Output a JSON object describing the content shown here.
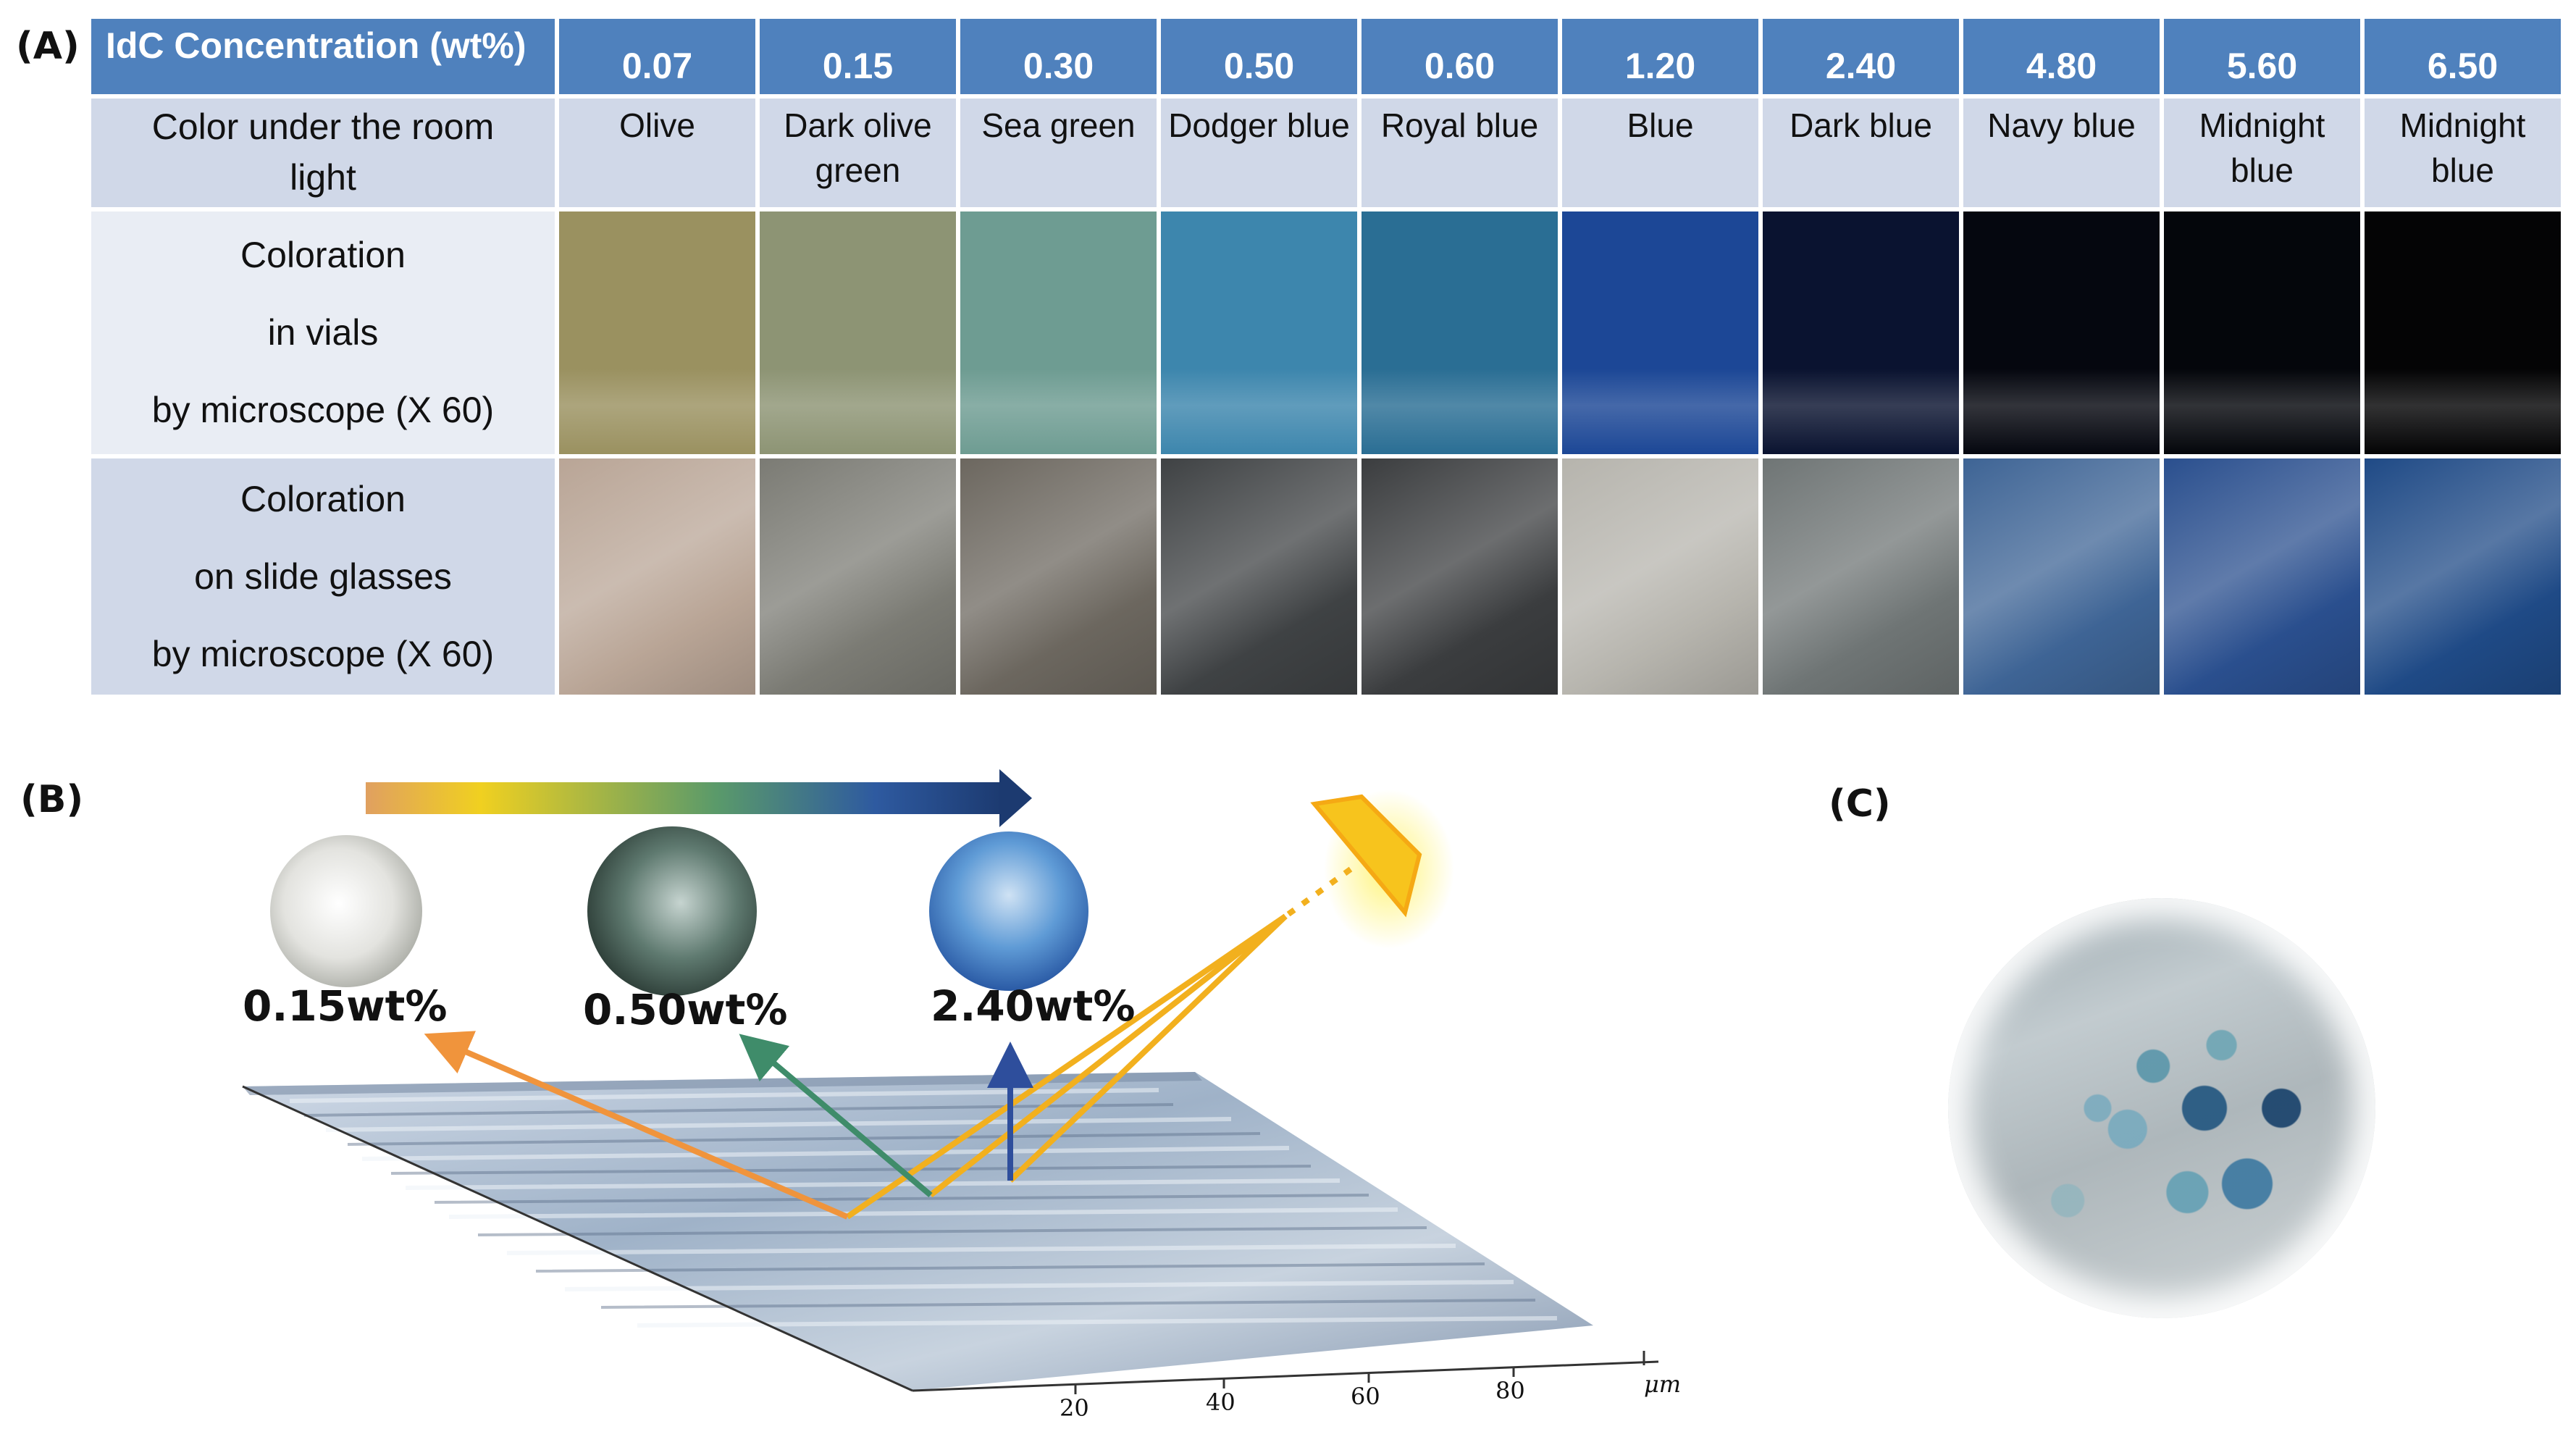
{
  "panel_labels": {
    "a": "(A)",
    "b": "(B)",
    "c": "(C)"
  },
  "table": {
    "header_label": "IdC Concentration (wt%)",
    "concentrations": [
      "0.07",
      "0.15",
      "0.30",
      "0.50",
      "0.60",
      "1.20",
      "2.40",
      "4.80",
      "5.60",
      "6.50"
    ],
    "color_row_label": "Color under the room light",
    "color_names": [
      "Olive",
      "Dark olive green",
      "Sea green",
      "Dodger blue",
      "Royal blue",
      "Blue",
      "Dark blue",
      "Navy blue",
      "Midnight blue",
      "Midnight blue"
    ],
    "vials_row_label": [
      "Coloration",
      "in vials",
      "by microscope (X 60)"
    ],
    "slides_row_label": [
      "Coloration",
      "on slide glasses",
      "by microscope (X 60)"
    ],
    "vial_colors": [
      "#9a9160",
      "#8d9474",
      "#6e9c92",
      "#3d86ad",
      "#2a6e94",
      "#1c4796",
      "#0a1330",
      "#05070f",
      "#04060b",
      "#040405"
    ],
    "slide_colors": [
      "#b9a596",
      "#7b7b74",
      "#6c675f",
      "#3f4244",
      "#3b3d3f",
      "#b6b4ad",
      "#6f7575",
      "#3e6495",
      "#2a4f8e",
      "#1f4a86"
    ]
  },
  "panel_b": {
    "wt_labels": [
      "0.15wt%",
      "0.50wt%",
      "2.40wt%"
    ],
    "axis_ticks": [
      "20",
      "40",
      "60",
      "80"
    ],
    "axis_unit": "μm",
    "gradient_colors": [
      "#e0a060",
      "#f0d020",
      "#5a9a6a",
      "#2e5aa0",
      "#1c3a70"
    ],
    "arrow_colors": {
      "orange": "#f0943c",
      "green": "#3f8c6a",
      "blue": "#2e4e9c",
      "yellow": "#f2b01e"
    }
  }
}
